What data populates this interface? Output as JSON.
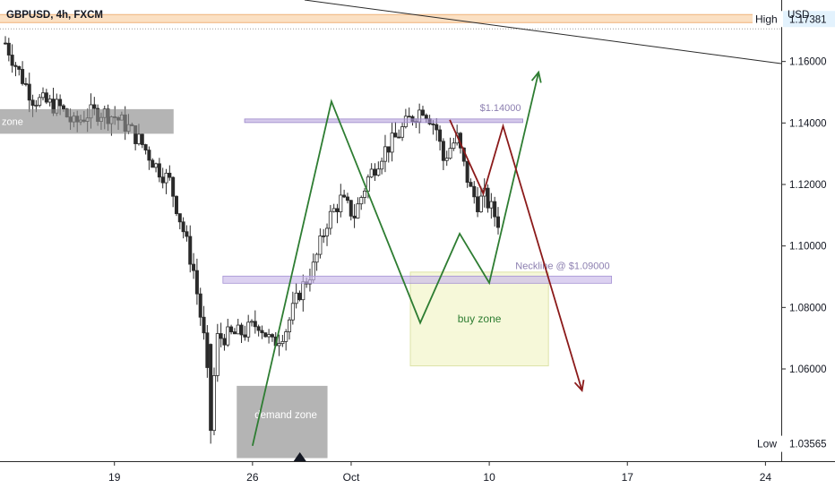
{
  "symbol_title": "GBPUSD, 4h, FXCM",
  "currency_label": "USD",
  "chart_data": {
    "type": "candlestick",
    "title": "GBPUSD, 4h, FXCM",
    "ylabel": "USD",
    "ylim": [
      1.03,
      1.18
    ],
    "y_ticks": [
      {
        "value": 1.06,
        "label": "1.06000"
      },
      {
        "value": 1.08,
        "label": "1.08000"
      },
      {
        "value": 1.1,
        "label": "1.10000"
      },
      {
        "value": 1.12,
        "label": "1.12000"
      },
      {
        "value": 1.14,
        "label": "1.14000"
      },
      {
        "value": 1.16,
        "label": "1.16000"
      }
    ],
    "x_ticks": [
      {
        "day": 19,
        "label": "19"
      },
      {
        "day": 26,
        "label": "26"
      },
      {
        "day": 31,
        "label": "Oct"
      },
      {
        "day": 38,
        "label": "10"
      },
      {
        "day": 45,
        "label": "17"
      },
      {
        "day": 52,
        "label": "24"
      }
    ],
    "x_range_days": [
      13.2,
      52.8
    ],
    "high": {
      "label": "High",
      "value": 1.17381,
      "value_label": "1.17381"
    },
    "low": {
      "label": "Low",
      "value": 1.03565,
      "value_label": "1.03565"
    },
    "candle_count": 145,
    "candles_description": "4h candles from roughly Sep 13 to Oct 10",
    "price_anchors": [
      [
        0,
        1.166
      ],
      [
        4,
        1.1565
      ],
      [
        8,
        1.148
      ],
      [
        12,
        1.1465
      ],
      [
        16,
        1.145
      ],
      [
        20,
        1.1395
      ],
      [
        24,
        1.143
      ],
      [
        28,
        1.1435
      ],
      [
        32,
        1.142
      ],
      [
        36,
        1.1385
      ],
      [
        40,
        1.133
      ],
      [
        44,
        1.126
      ],
      [
        48,
        1.121
      ],
      [
        52,
        1.105
      ],
      [
        55,
        1.092
      ],
      [
        58,
        1.07
      ],
      [
        60,
        1.045
      ],
      [
        62,
        1.07
      ],
      [
        66,
        1.071
      ],
      [
        70,
        1.072
      ],
      [
        74,
        1.075
      ],
      [
        78,
        1.068
      ],
      [
        82,
        1.073
      ],
      [
        86,
        1.085
      ],
      [
        90,
        1.093
      ],
      [
        94,
        1.108
      ],
      [
        98,
        1.115
      ],
      [
        102,
        1.11
      ],
      [
        106,
        1.122
      ],
      [
        110,
        1.13
      ],
      [
        114,
        1.135
      ],
      [
        118,
        1.141
      ],
      [
        122,
        1.145
      ],
      [
        124,
        1.142
      ],
      [
        126,
        1.138
      ],
      [
        128,
        1.128
      ],
      [
        130,
        1.132
      ],
      [
        132,
        1.135
      ],
      [
        134,
        1.126
      ],
      [
        136,
        1.118
      ],
      [
        138,
        1.114
      ],
      [
        140,
        1.116
      ],
      [
        142,
        1.112
      ],
      [
        144,
        1.108
      ]
    ],
    "horizontal_lines": [
      {
        "name": "high-line",
        "value": 1.17381,
        "color": "#f0b27a"
      },
      {
        "name": "dotted-line",
        "value": 1.1706,
        "color": "#9e9e9e"
      }
    ],
    "zones": [
      {
        "name": "supply-zone-band",
        "x_from_day": 13.2,
        "x_to_day": 22.0,
        "y_from": 1.1365,
        "y_to": 1.1445,
        "color": "#808080",
        "label": "zone"
      },
      {
        "name": "resistance-band",
        "x_from_day": 25.6,
        "x_to_day": 39.7,
        "y_from": 1.1403,
        "y_to": 1.1413,
        "color": "#b39ddb",
        "label": "$1.14000"
      },
      {
        "name": "neckline-band",
        "x_from_day": 24.5,
        "x_to_day": 44.2,
        "y_from": 1.0888,
        "y_to": 1.0902,
        "color": "#b39ddb",
        "label": "Neckline @ $1.09000"
      },
      {
        "name": "buy-zone-box",
        "x_from_day": 34.0,
        "x_to_day": 41.0,
        "y_from": 1.061,
        "y_to": 1.0915,
        "color": "#f0f4c3",
        "label": "buy zone"
      },
      {
        "name": "demand-zone-box",
        "x_from_day": 25.2,
        "x_to_day": 29.8,
        "y_from": 1.031,
        "y_to": 1.0545,
        "color": "#808080",
        "label": "demand zone"
      }
    ],
    "paths": [
      {
        "name": "green-projection-path",
        "color": "#2e7d32",
        "arrow": true,
        "points": [
          [
            26.0,
            1.035
          ],
          [
            30.0,
            1.147
          ],
          [
            34.5,
            1.075
          ],
          [
            36.5,
            1.104
          ],
          [
            38.0,
            1.088
          ],
          [
            40.5,
            1.1565
          ]
        ]
      },
      {
        "name": "red-projection-path",
        "color": "#8b1a1a",
        "arrow": true,
        "points": [
          [
            36.0,
            1.141
          ],
          [
            37.7,
            1.117
          ],
          [
            38.7,
            1.139
          ],
          [
            42.7,
            1.053
          ]
        ]
      }
    ],
    "markers": [
      {
        "name": "event-triangle-marker",
        "day": 28.4
      }
    ]
  }
}
